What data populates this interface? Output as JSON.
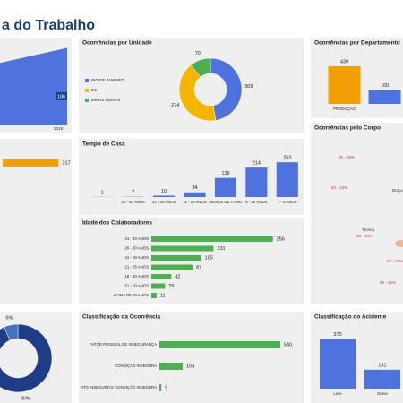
{
  "header": {
    "title": "a do Trabalho"
  },
  "chart_data": [
    {
      "type": "area",
      "categories": [
        null,
        "2019"
      ],
      "values": [
        150,
        186
      ],
      "ylim": [
        0,
        200
      ],
      "color": "#4e73df"
    },
    {
      "type": "donut",
      "title": "Ocorrências por Unidade",
      "categories": [
        "RIO DE JANEIRO",
        "ES",
        "MINAS GERAIS"
      ],
      "values": [
        309,
        274,
        70
      ],
      "colors": [
        "#4e73df",
        "#f4b400",
        "#4caf50"
      ]
    },
    {
      "type": "bar",
      "title": "Ocorrências por Departamento",
      "categories": [
        "PRODUÇÃO",
        null
      ],
      "values": [
        439,
        160
      ],
      "ylim": [
        0,
        480
      ],
      "colors": [
        "#f29f05",
        "#4e73df"
      ]
    },
    {
      "type": "hbar",
      "categories": [
        null
      ],
      "values": [
        317
      ],
      "xlim": [
        0,
        330
      ],
      "color": "#f29f05"
    },
    {
      "type": "bar",
      "title": "Tempo de Casa",
      "categories": [
        null,
        "31 - 40 ANOS",
        "21 - 30 ANOS",
        "11 - 20 ANOS",
        "MENOS DE 1 ANO",
        "6 - 10 ANOS",
        "1 - 5 ANOS"
      ],
      "values": [
        1,
        2,
        10,
        34,
        139,
        214,
        253
      ],
      "ylim": [
        0,
        280
      ],
      "color": "#4e73df"
    },
    {
      "type": "hbar",
      "title": "Idade dos Colaboradores",
      "categories": [
        "31 - 40 ANOS",
        "26 - 30 ANOS",
        "41 - 50 ANOS",
        "21 - 25 ANOS",
        "18 - 20 ANOS",
        "51 - 60 ANOS",
        "ACIMA DE 60 ANOS"
      ],
      "values": [
        256,
        131,
        105,
        87,
        42,
        29,
        11
      ],
      "xlim": [
        0,
        300
      ],
      "color": "#4caf50"
    },
    {
      "type": "annotated-image",
      "title": "Ocorrências pelo Corpo",
      "annotations": [
        "35 - 15%",
        "82 - 13%",
        "Braço",
        "Tronco",
        "63 - 10%",
        "67 - 10%",
        "80 - 12%"
      ]
    },
    {
      "type": "donut",
      "categories": [
        null,
        null
      ],
      "values": [
        84,
        6
      ],
      "value_labels": [
        "84%",
        "6%"
      ],
      "colors": [
        "#1f3c88",
        "#4472c4"
      ]
    },
    {
      "type": "hbar",
      "title": "Classificação da Ocorrência",
      "categories": [
        "FATOR PESSOAL DE INSEGURANÇA",
        "CONDIÇÃO INSEGURA",
        "ATO INSEGURO E CONDIÇÃO INSEGURA"
      ],
      "values": [
        540,
        104,
        9
      ],
      "xlim": [
        0,
        600
      ],
      "color": "#4caf50"
    },
    {
      "type": "bar",
      "title": "Classificação do Acidente",
      "categories": [
        "Leve",
        "Grave"
      ],
      "values": [
        370,
        141
      ],
      "ylim": [
        0,
        400
      ],
      "color": "#4e73df"
    }
  ]
}
